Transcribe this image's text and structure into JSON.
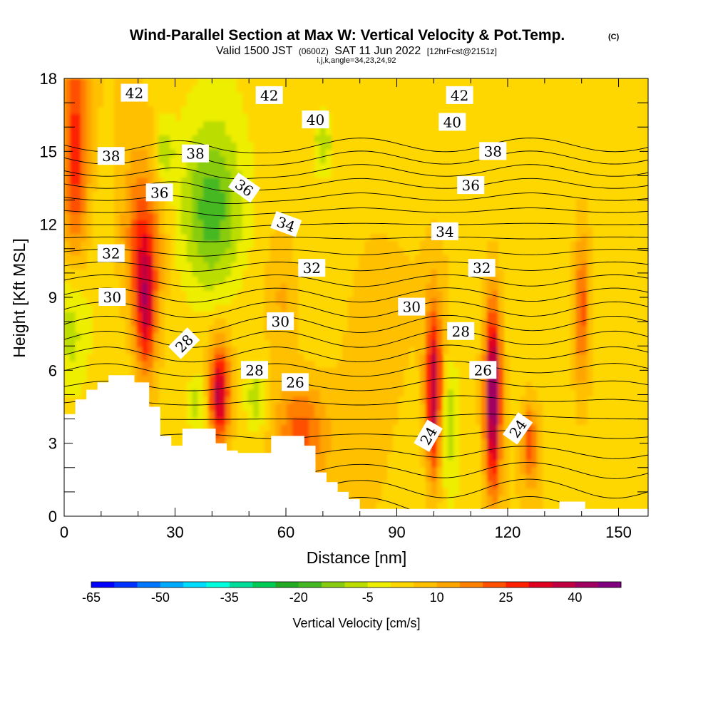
{
  "chart_data": {
    "type": "heatmap",
    "title": "Wind-Parallel Section at Max W: Vertical Velocity & Pot.Temp.",
    "title_suffix": "(C)",
    "subtitle": {
      "pre": "Valid 1500 JST",
      "small1": "(0600Z)",
      "mid": "SAT 11 Jun 2022",
      "small2": "[12hrFcst@2151z]"
    },
    "subtitle2": "i,j,k,angle=34,23,24,92",
    "xlabel": "Distance [nm]",
    "ylabel": "Height [Kft MSL]",
    "xlim": [
      0,
      158
    ],
    "ylim": [
      0,
      18
    ],
    "x_ticks": [
      0,
      30,
      60,
      90,
      120,
      150
    ],
    "y_ticks": [
      0,
      3,
      6,
      9,
      12,
      15,
      18
    ],
    "colorbar": {
      "title": "Vertical Velocity [cm/s]",
      "min": -65,
      "max": 50,
      "step": 5,
      "tick_values": [
        -65,
        -50,
        -35,
        -20,
        -5,
        10,
        25,
        40
      ],
      "colors": [
        "#0000ff",
        "#0033ff",
        "#0077ff",
        "#00aaff",
        "#00ddff",
        "#00ffdd",
        "#00dd99",
        "#00cc55",
        "#22aa22",
        "#44b822",
        "#88cc11",
        "#bbdd00",
        "#eeee00",
        "#ffd700",
        "#ffc000",
        "#ffa500",
        "#ff8000",
        "#ff5000",
        "#ff2000",
        "#e00020",
        "#c00040",
        "#a00060",
        "#800080"
      ]
    },
    "terrain": [
      [
        0,
        4.2
      ],
      [
        3,
        4.2
      ],
      [
        3,
        4.8
      ],
      [
        6,
        4.8
      ],
      [
        6,
        5.2
      ],
      [
        9,
        5.2
      ],
      [
        9,
        5.5
      ],
      [
        12,
        5.5
      ],
      [
        12,
        5.8
      ],
      [
        19,
        5.8
      ],
      [
        19,
        5.5
      ],
      [
        23,
        5.5
      ],
      [
        23,
        4.5
      ],
      [
        26,
        4.5
      ],
      [
        26,
        3.3
      ],
      [
        29,
        3.3
      ],
      [
        29,
        2.9
      ],
      [
        32,
        2.9
      ],
      [
        32,
        3.6
      ],
      [
        41,
        3.6
      ],
      [
        41,
        3.0
      ],
      [
        44,
        3.0
      ],
      [
        44,
        2.7
      ],
      [
        47,
        2.7
      ],
      [
        47,
        2.6
      ],
      [
        56,
        2.6
      ],
      [
        56,
        3.3
      ],
      [
        65,
        3.3
      ],
      [
        65,
        2.9
      ],
      [
        68,
        2.9
      ],
      [
        68,
        1.8
      ],
      [
        71,
        1.8
      ],
      [
        71,
        1.4
      ],
      [
        74,
        1.4
      ],
      [
        74,
        1.0
      ],
      [
        77,
        1.0
      ],
      [
        77,
        0.7
      ],
      [
        80,
        0.7
      ],
      [
        80,
        0.3
      ],
      [
        134,
        0.3
      ],
      [
        134,
        0.6
      ],
      [
        141,
        0.6
      ],
      [
        141,
        0.3
      ],
      [
        158,
        0.3
      ]
    ],
    "theta_contours": [
      {
        "value": 24,
        "labels": [
          [
            98.6,
            3.3,
            -60
          ],
          [
            122.8,
            3.6,
            -55
          ]
        ]
      },
      {
        "value": 26,
        "labels": [
          [
            62.5,
            5.5,
            0
          ],
          [
            113.3,
            6.0,
            0
          ]
        ]
      },
      {
        "value": 28,
        "labels": [
          [
            32.5,
            7.1,
            -45
          ],
          [
            51.5,
            6.0,
            0
          ],
          [
            107.3,
            7.6,
            0
          ]
        ]
      },
      {
        "value": 30,
        "labels": [
          [
            13.0,
            9.0,
            0
          ],
          [
            58.5,
            8.0,
            0
          ],
          [
            94.0,
            8.6,
            0
          ]
        ]
      },
      {
        "value": 32,
        "labels": [
          [
            12.7,
            10.8,
            0
          ],
          [
            67.0,
            10.2,
            0
          ],
          [
            113.0,
            10.2,
            0
          ]
        ]
      },
      {
        "value": 34,
        "labels": [
          [
            60.0,
            12.0,
            20
          ],
          [
            103.0,
            11.7,
            0
          ]
        ]
      },
      {
        "value": 36,
        "labels": [
          [
            25.8,
            13.3,
            0
          ],
          [
            48.7,
            13.5,
            35
          ],
          [
            110.0,
            13.6,
            0
          ]
        ]
      },
      {
        "value": 38,
        "labels": [
          [
            12.7,
            14.8,
            0
          ],
          [
            35.5,
            14.9,
            0
          ],
          [
            116.0,
            15.0,
            0
          ]
        ]
      },
      {
        "value": 40,
        "labels": [
          [
            68.0,
            16.3,
            0
          ],
          [
            105.0,
            16.2,
            0
          ]
        ]
      },
      {
        "value": 42,
        "labels": [
          [
            19.0,
            17.4,
            0
          ],
          [
            55.5,
            17.3,
            0
          ],
          [
            107.0,
            17.3,
            0
          ]
        ]
      }
    ],
    "velocity_features": [
      {
        "x": 3,
        "y": 15,
        "sx": 2.5,
        "sy": 3.5,
        "w": 25
      },
      {
        "x": 21,
        "y": 11.5,
        "sx": 4,
        "sy": 2.5,
        "w": 20
      },
      {
        "x": 22,
        "y": 8.5,
        "sx": 2,
        "sy": 2,
        "w": 28
      },
      {
        "x": 42,
        "y": 5,
        "sx": 2,
        "sy": 1.5,
        "w": 35
      },
      {
        "x": 40,
        "y": 12.5,
        "sx": 6,
        "sy": 2.5,
        "w": -22
      },
      {
        "x": 27,
        "y": 15,
        "sx": 2,
        "sy": 1,
        "w": -12
      },
      {
        "x": 2,
        "y": 8,
        "sx": 3,
        "sy": 2,
        "w": -12
      },
      {
        "x": 64,
        "y": 3.5,
        "sx": 5,
        "sy": 1.5,
        "w": 18
      },
      {
        "x": 100,
        "y": 5,
        "sx": 1.6,
        "sy": 2.5,
        "w": 38
      },
      {
        "x": 116,
        "y": 5,
        "sx": 1.6,
        "sy": 2.7,
        "w": 45
      },
      {
        "x": 104,
        "y": 4,
        "sx": 2,
        "sy": 1.8,
        "w": -12
      },
      {
        "x": 140,
        "y": 8.5,
        "sx": 1.5,
        "sy": 2.2,
        "w": 20
      },
      {
        "x": 126,
        "y": 3,
        "sx": 1.5,
        "sy": 1.2,
        "w": 20
      },
      {
        "x": 52,
        "y": 5,
        "sx": 2,
        "sy": 1,
        "w": -12
      },
      {
        "x": 36,
        "y": 4.7,
        "sx": 2,
        "sy": 0.8,
        "w": -10
      },
      {
        "x": 59,
        "y": 9,
        "sx": 3,
        "sy": 2,
        "w": 8
      },
      {
        "x": 82,
        "y": 6,
        "sx": 6,
        "sy": 4,
        "w": 6
      },
      {
        "x": 70,
        "y": 15.5,
        "sx": 2,
        "sy": 1,
        "w": -12
      }
    ]
  }
}
